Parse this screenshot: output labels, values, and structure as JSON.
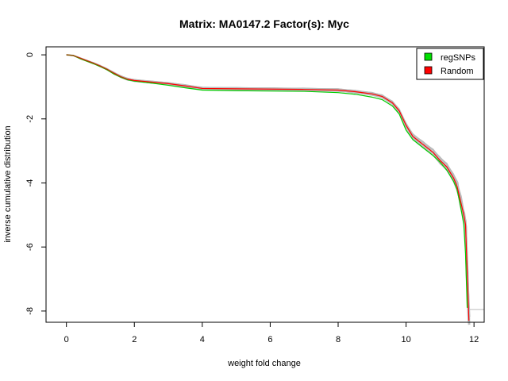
{
  "chart_data": {
    "type": "line",
    "title": "Matrix: MA0147.2 Factor(s): Myc",
    "xlabel": "weight fold change",
    "ylabel": "inverse cumulative distribution",
    "xlim": [
      -0.6,
      12.3
    ],
    "ylim": [
      -8.35,
      0.25
    ],
    "x_ticks": [
      0,
      2,
      4,
      6,
      8,
      10,
      12
    ],
    "y_ticks": [
      0,
      -2,
      -4,
      -6,
      -8
    ],
    "x_tick_labels": [
      "0",
      "2",
      "4",
      "6",
      "8",
      "10",
      "12"
    ],
    "y_tick_labels": [
      "0",
      "-2",
      "-4",
      "-6",
      "-8"
    ],
    "grid": false,
    "legend_position": "top-right",
    "legend": [
      {
        "label": "regSNPs",
        "color": "#00e000"
      },
      {
        "label": "Random",
        "color": "#ff0000"
      }
    ],
    "series": [
      {
        "name": "regSNPs",
        "color": "#00cc00",
        "x": [
          0,
          0.2,
          0.4,
          0.6,
          0.8,
          1.0,
          1.2,
          1.4,
          1.6,
          1.8,
          2.0,
          2.5,
          3.0,
          3.5,
          4.0,
          5.0,
          6.0,
          7.0,
          8.0,
          8.5,
          9.0,
          9.3,
          9.6,
          9.8,
          10.0,
          10.2,
          10.5,
          10.8,
          11.0,
          11.2,
          11.4,
          11.5,
          11.6,
          11.7,
          11.75,
          11.8
        ],
        "y": [
          0,
          -0.02,
          -0.12,
          -0.2,
          -0.28,
          -0.37,
          -0.47,
          -0.6,
          -0.7,
          -0.78,
          -0.82,
          -0.88,
          -0.95,
          -1.03,
          -1.1,
          -1.12,
          -1.13,
          -1.14,
          -1.18,
          -1.23,
          -1.32,
          -1.4,
          -1.6,
          -1.85,
          -2.35,
          -2.65,
          -2.9,
          -3.15,
          -3.35,
          -3.6,
          -3.95,
          -4.2,
          -4.7,
          -5.3,
          -6.2,
          -7.9
        ]
      },
      {
        "name": "Random",
        "color": "#ff0000",
        "x": [
          0,
          0.2,
          0.4,
          0.6,
          0.8,
          1.0,
          1.2,
          1.4,
          1.6,
          1.8,
          2.0,
          2.5,
          3.0,
          3.5,
          4.0,
          5.0,
          6.0,
          7.0,
          8.0,
          8.5,
          9.0,
          9.3,
          9.6,
          9.8,
          10.0,
          10.2,
          10.5,
          10.8,
          11.0,
          11.2,
          11.4,
          11.5,
          11.6,
          11.7,
          11.75,
          11.8,
          11.85
        ],
        "y": [
          0,
          -0.02,
          -0.1,
          -0.18,
          -0.26,
          -0.35,
          -0.45,
          -0.57,
          -0.68,
          -0.76,
          -0.8,
          -0.85,
          -0.9,
          -0.97,
          -1.05,
          -1.06,
          -1.07,
          -1.08,
          -1.1,
          -1.15,
          -1.22,
          -1.3,
          -1.5,
          -1.75,
          -2.2,
          -2.55,
          -2.8,
          -3.05,
          -3.3,
          -3.5,
          -3.85,
          -4.1,
          -4.55,
          -5.0,
          -5.3,
          -6.8,
          -8.3
        ]
      }
    ],
    "background_series_color": "#bbbbbb"
  }
}
